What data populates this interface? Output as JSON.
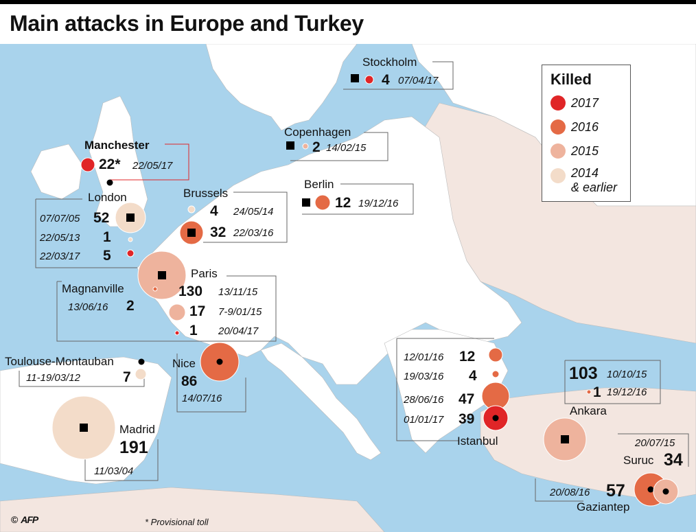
{
  "title": "Main attacks in Europe and Turkey",
  "colors": {
    "sea": "#a9d3ec",
    "land": "#ffffff",
    "land_east": "#f3e6e0",
    "y2017": "#e02527",
    "y2016": "#e46a45",
    "y2015": "#eeb39d",
    "y2014_earlier": "#f3dcc9"
  },
  "legend": {
    "title": "Killed",
    "items": [
      {
        "label": "2017"
      },
      {
        "label": "2016"
      },
      {
        "label": "2015"
      },
      {
        "label": "2014",
        "label2": "& earlier"
      }
    ]
  },
  "cities": {
    "stockholm": {
      "name": "Stockholm",
      "attacks": [
        {
          "killed": "4",
          "date": "07/04/17"
        }
      ]
    },
    "copenhagen": {
      "name": "Copenhagen",
      "attacks": [
        {
          "killed": "2",
          "date": "14/02/15"
        }
      ]
    },
    "manchester": {
      "name": "Manchester",
      "attacks": [
        {
          "killed": "22*",
          "date": "22/05/17"
        }
      ]
    },
    "berlin": {
      "name": "Berlin",
      "attacks": [
        {
          "killed": "12",
          "date": "19/12/16"
        }
      ]
    },
    "london": {
      "name": "London",
      "attacks": [
        {
          "killed": "52",
          "date": "07/07/05"
        },
        {
          "killed": "1",
          "date": "22/05/13"
        },
        {
          "killed": "5",
          "date": "22/03/17"
        }
      ]
    },
    "brussels": {
      "name": "Brussels",
      "attacks": [
        {
          "killed": "4",
          "date": "24/05/14"
        },
        {
          "killed": "32",
          "date": "22/03/16"
        }
      ]
    },
    "paris": {
      "name": "Paris",
      "attacks": [
        {
          "killed": "130",
          "date": "13/11/15"
        },
        {
          "killed": "17",
          "date": "7-9/01/15"
        },
        {
          "killed": "1",
          "date": "20/04/17"
        }
      ]
    },
    "magnanville": {
      "name": "Magnanville",
      "attacks": [
        {
          "killed": "2",
          "date": "13/06/16"
        }
      ]
    },
    "toulouse": {
      "name": "Toulouse-Montauban",
      "attacks": [
        {
          "killed": "7",
          "date": "11-19/03/12"
        }
      ]
    },
    "nice": {
      "name": "Nice",
      "attacks": [
        {
          "killed": "86",
          "date": "14/07/16"
        }
      ]
    },
    "madrid": {
      "name": "Madrid",
      "attacks": [
        {
          "killed": "191",
          "date": "11/03/04"
        }
      ]
    },
    "istanbul": {
      "name": "Istanbul",
      "attacks": [
        {
          "killed": "12",
          "date": "12/01/16"
        },
        {
          "killed": "4",
          "date": "19/03/16"
        },
        {
          "killed": "47",
          "date": "28/06/16"
        },
        {
          "killed": "39",
          "date": "01/01/17"
        }
      ]
    },
    "ankara": {
      "name": "Ankara",
      "attacks": [
        {
          "killed": "103",
          "date": "10/10/15"
        },
        {
          "killed": "1",
          "date": "19/12/16"
        }
      ]
    },
    "suruc": {
      "name": "Suruc",
      "attacks": [
        {
          "killed": "34",
          "date": "20/07/15"
        }
      ]
    },
    "gaziantep": {
      "name": "Gaziantep",
      "attacks": [
        {
          "killed": "57",
          "date": "20/08/16"
        }
      ]
    }
  },
  "footer": {
    "note": "* Provisional toll",
    "copyright": "©",
    "brand": "AFP"
  }
}
